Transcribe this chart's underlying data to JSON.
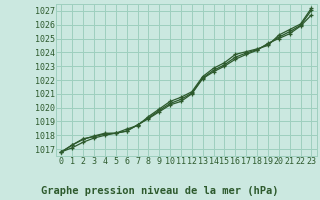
{
  "title": "Graphe pression niveau de la mer (hPa)",
  "background_color": "#cbe8e0",
  "grid_color": "#9ecfbe",
  "line_color": "#2d5a2d",
  "ylim": [
    1016.5,
    1027.5
  ],
  "xlim": [
    -0.5,
    23.5
  ],
  "yticks": [
    1017,
    1018,
    1019,
    1020,
    1021,
    1022,
    1023,
    1024,
    1025,
    1026,
    1027
  ],
  "xticks": [
    0,
    1,
    2,
    3,
    4,
    5,
    6,
    7,
    8,
    9,
    10,
    11,
    12,
    13,
    14,
    15,
    16,
    17,
    18,
    19,
    20,
    21,
    22,
    23
  ],
  "series1": [
    1016.8,
    1017.3,
    1017.75,
    1017.9,
    1018.1,
    1018.15,
    1018.3,
    1018.75,
    1019.25,
    1019.8,
    1020.3,
    1020.6,
    1021.05,
    1022.15,
    1022.7,
    1023.1,
    1023.65,
    1023.95,
    1024.2,
    1024.6,
    1025.1,
    1025.5,
    1025.95,
    1027.05
  ],
  "series2": [
    1016.8,
    1017.1,
    1017.5,
    1017.8,
    1018.0,
    1018.15,
    1018.3,
    1018.75,
    1019.2,
    1019.7,
    1020.2,
    1020.45,
    1021.0,
    1022.1,
    1022.6,
    1023.0,
    1023.5,
    1023.85,
    1024.15,
    1024.65,
    1025.0,
    1025.35,
    1025.9,
    1026.7
  ],
  "series3": [
    1016.8,
    1017.3,
    1017.7,
    1017.95,
    1018.15,
    1018.15,
    1018.45,
    1018.7,
    1019.35,
    1019.9,
    1020.45,
    1020.75,
    1021.15,
    1022.25,
    1022.85,
    1023.25,
    1023.85,
    1024.05,
    1024.25,
    1024.5,
    1025.25,
    1025.65,
    1026.05,
    1027.2
  ],
  "title_fontsize": 7.5,
  "tick_fontsize": 6
}
